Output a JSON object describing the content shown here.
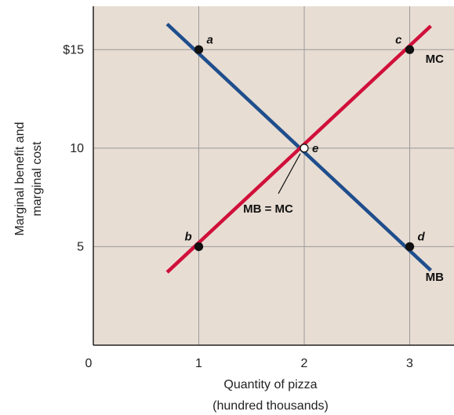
{
  "chart_data": {
    "type": "line",
    "xlabel": [
      "Quantity of pizza",
      "(hundred thousands)"
    ],
    "ylabel": [
      "Marginal benefit and",
      "marginal cost"
    ],
    "xlim": [
      0,
      3.42
    ],
    "ylim": [
      0,
      17.2
    ],
    "x_ticks": [
      {
        "value": 0,
        "label": "0"
      },
      {
        "value": 1,
        "label": "1"
      },
      {
        "value": 2,
        "label": "2"
      },
      {
        "value": 3,
        "label": "3"
      }
    ],
    "y_ticks": [
      {
        "value": 5,
        "label": "5"
      },
      {
        "value": 10,
        "label": "10"
      },
      {
        "value": 15,
        "label": "$15"
      }
    ],
    "grid": true,
    "background_color": "#E8DDD3",
    "series": [
      {
        "name": "MB",
        "color": "#1F4E8C",
        "x": [
          0.7,
          3.2
        ],
        "y": [
          16.3,
          3.8
        ]
      },
      {
        "name": "MC",
        "color": "#D0103A",
        "x": [
          0.7,
          3.2
        ],
        "y": [
          3.7,
          16.2
        ]
      }
    ],
    "points": [
      {
        "label": "a",
        "x": 1,
        "y": 15,
        "hollow": false
      },
      {
        "label": "c",
        "x": 3,
        "y": 15,
        "hollow": false
      },
      {
        "label": "e",
        "x": 2,
        "y": 10,
        "hollow": true
      },
      {
        "label": "b",
        "x": 1,
        "y": 5,
        "hollow": false
      },
      {
        "label": "d",
        "x": 3,
        "y": 5,
        "hollow": false
      }
    ],
    "annotations": [
      {
        "text": "MB = MC",
        "x": 2,
        "y": 10
      }
    ]
  }
}
